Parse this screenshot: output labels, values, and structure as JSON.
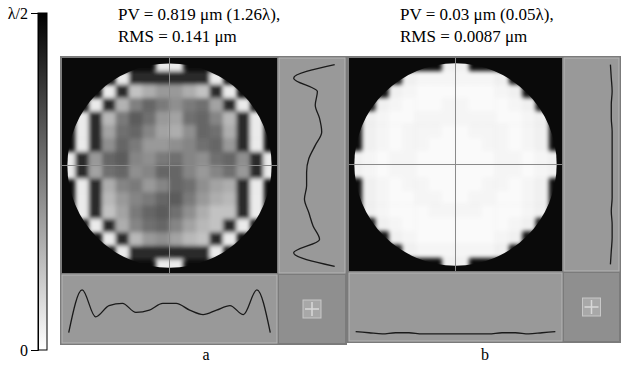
{
  "chart_data": [
    {
      "type": "heatmap",
      "title": [
        "PV = 0.819 μm (1.26λ),",
        "RMS = 0.141 μm"
      ],
      "xlabel": "a",
      "colorbar": {
        "range": [
          0,
          0.5
        ],
        "ticks": [
          0,
          {
            "value": 0.5,
            "label": "λ/2"
          }
        ]
      },
      "cells": [
        [
          null,
          null,
          null,
          null,
          null,
          null,
          null,
          0.04,
          0.04,
          null,
          null,
          null,
          null,
          null,
          null,
          null
        ],
        [
          null,
          null,
          null,
          null,
          0.04,
          0.42,
          0.42,
          0.42,
          0.42,
          0.42,
          0.42,
          0.04,
          null,
          null,
          null,
          null
        ],
        [
          null,
          null,
          null,
          0.04,
          0.42,
          0.12,
          0.16,
          0.2,
          0.2,
          0.16,
          0.12,
          0.42,
          0.04,
          null,
          null,
          null
        ],
        [
          null,
          null,
          0.04,
          0.42,
          0.15,
          0.25,
          0.3,
          0.26,
          0.22,
          0.26,
          0.28,
          0.18,
          0.42,
          0.04,
          null,
          null
        ],
        [
          null,
          0.04,
          0.42,
          0.14,
          0.26,
          0.32,
          0.28,
          0.2,
          0.18,
          0.28,
          0.3,
          0.24,
          0.14,
          0.42,
          0.04,
          null
        ],
        [
          null,
          0.04,
          0.42,
          0.18,
          0.28,
          0.3,
          0.24,
          0.18,
          0.16,
          0.22,
          0.3,
          0.28,
          0.16,
          0.42,
          0.04,
          null
        ],
        [
          null,
          0.04,
          0.42,
          0.22,
          0.3,
          0.26,
          0.2,
          0.2,
          0.22,
          0.24,
          0.28,
          0.3,
          0.2,
          0.42,
          0.04,
          null
        ],
        [
          0.04,
          0.42,
          0.2,
          0.3,
          0.32,
          0.24,
          0.22,
          0.26,
          0.28,
          0.24,
          0.22,
          0.28,
          0.3,
          0.22,
          0.42,
          0.04
        ],
        [
          0.04,
          0.42,
          0.18,
          0.28,
          0.3,
          0.22,
          0.24,
          0.3,
          0.3,
          0.24,
          0.2,
          0.24,
          0.28,
          0.2,
          0.42,
          0.04
        ],
        [
          null,
          0.04,
          0.42,
          0.16,
          0.24,
          0.26,
          0.2,
          0.24,
          0.3,
          0.28,
          0.22,
          0.18,
          0.16,
          0.42,
          0.04,
          null
        ],
        [
          null,
          0.04,
          0.42,
          0.14,
          0.2,
          0.24,
          0.26,
          0.3,
          0.32,
          0.26,
          0.2,
          0.16,
          0.14,
          0.42,
          0.04,
          null
        ],
        [
          null,
          0.04,
          0.42,
          0.12,
          0.18,
          0.26,
          0.3,
          0.32,
          0.28,
          0.22,
          0.16,
          0.12,
          0.12,
          0.42,
          0.04,
          null
        ],
        [
          null,
          null,
          0.04,
          0.42,
          0.16,
          0.24,
          0.28,
          0.3,
          0.24,
          0.18,
          0.14,
          0.12,
          0.42,
          0.04,
          null,
          null
        ],
        [
          null,
          null,
          null,
          0.04,
          0.42,
          0.14,
          0.2,
          0.22,
          0.18,
          0.14,
          0.12,
          0.42,
          0.04,
          null,
          null,
          null
        ],
        [
          null,
          null,
          null,
          null,
          0.04,
          0.42,
          0.42,
          0.42,
          0.42,
          0.42,
          0.42,
          0.04,
          null,
          null,
          null,
          null
        ],
        [
          null,
          null,
          null,
          null,
          null,
          null,
          null,
          0.04,
          0.04,
          null,
          null,
          null,
          null,
          null,
          null,
          null
        ]
      ]
    },
    {
      "type": "heatmap",
      "title": [
        "PV = 0.03 μm (0.05λ),",
        "RMS = 0.0087 μm"
      ],
      "xlabel": "b",
      "cells": [
        [
          null,
          null,
          null,
          null,
          null,
          null,
          null,
          0.03,
          0.03,
          null,
          null,
          null,
          null,
          null,
          null,
          null
        ],
        [
          null,
          null,
          null,
          null,
          0.03,
          0.02,
          0.02,
          0.02,
          0.02,
          0.02,
          0.02,
          0.03,
          null,
          null,
          null,
          null
        ],
        [
          null,
          null,
          null,
          0.03,
          0.02,
          0.01,
          0.01,
          0.01,
          0.01,
          0.01,
          0.01,
          0.02,
          0.03,
          null,
          null,
          null
        ],
        [
          null,
          null,
          0.03,
          0.02,
          0.01,
          0.01,
          0.01,
          0.02,
          0.02,
          0.01,
          0.01,
          0.01,
          0.02,
          0.03,
          null,
          null
        ],
        [
          null,
          0.03,
          0.02,
          0.01,
          0.01,
          0.02,
          0.02,
          0.02,
          0.02,
          0.02,
          0.02,
          0.01,
          0.01,
          0.02,
          0.03,
          null
        ],
        [
          null,
          0.03,
          0.02,
          0.01,
          0.02,
          0.02,
          0.02,
          0.01,
          0.01,
          0.02,
          0.02,
          0.02,
          0.01,
          0.02,
          0.03,
          null
        ],
        [
          null,
          0.03,
          0.02,
          0.01,
          0.02,
          0.02,
          0.01,
          0.01,
          0.01,
          0.01,
          0.02,
          0.02,
          0.01,
          0.02,
          0.03,
          null
        ],
        [
          0.03,
          0.02,
          0.01,
          0.02,
          0.02,
          0.01,
          0.01,
          0.01,
          0.01,
          0.01,
          0.01,
          0.02,
          0.02,
          0.01,
          0.02,
          0.03
        ],
        [
          0.03,
          0.02,
          0.01,
          0.02,
          0.02,
          0.01,
          0.01,
          0.01,
          0.01,
          0.01,
          0.01,
          0.02,
          0.02,
          0.01,
          0.02,
          0.03
        ],
        [
          null,
          0.03,
          0.02,
          0.01,
          0.02,
          0.02,
          0.01,
          0.01,
          0.01,
          0.01,
          0.02,
          0.02,
          0.01,
          0.02,
          0.03,
          null
        ],
        [
          null,
          0.03,
          0.02,
          0.01,
          0.01,
          0.02,
          0.02,
          0.01,
          0.01,
          0.02,
          0.02,
          0.01,
          0.01,
          0.02,
          0.03,
          null
        ],
        [
          null,
          0.03,
          0.02,
          0.01,
          0.01,
          0.01,
          0.02,
          0.02,
          0.02,
          0.02,
          0.01,
          0.01,
          0.01,
          0.02,
          0.03,
          null
        ],
        [
          null,
          null,
          0.03,
          0.02,
          0.01,
          0.01,
          0.01,
          0.01,
          0.01,
          0.01,
          0.01,
          0.01,
          0.02,
          0.03,
          null,
          null
        ],
        [
          null,
          null,
          null,
          0.03,
          0.02,
          0.01,
          0.01,
          0.01,
          0.01,
          0.01,
          0.01,
          0.02,
          0.03,
          null,
          null,
          null
        ],
        [
          null,
          null,
          null,
          null,
          0.03,
          0.02,
          0.02,
          0.02,
          0.02,
          0.02,
          0.02,
          0.03,
          null,
          null,
          null,
          null
        ],
        [
          null,
          null,
          null,
          null,
          null,
          null,
          null,
          0.03,
          0.03,
          null,
          null,
          null,
          null,
          null,
          null,
          null
        ]
      ]
    }
  ]
}
